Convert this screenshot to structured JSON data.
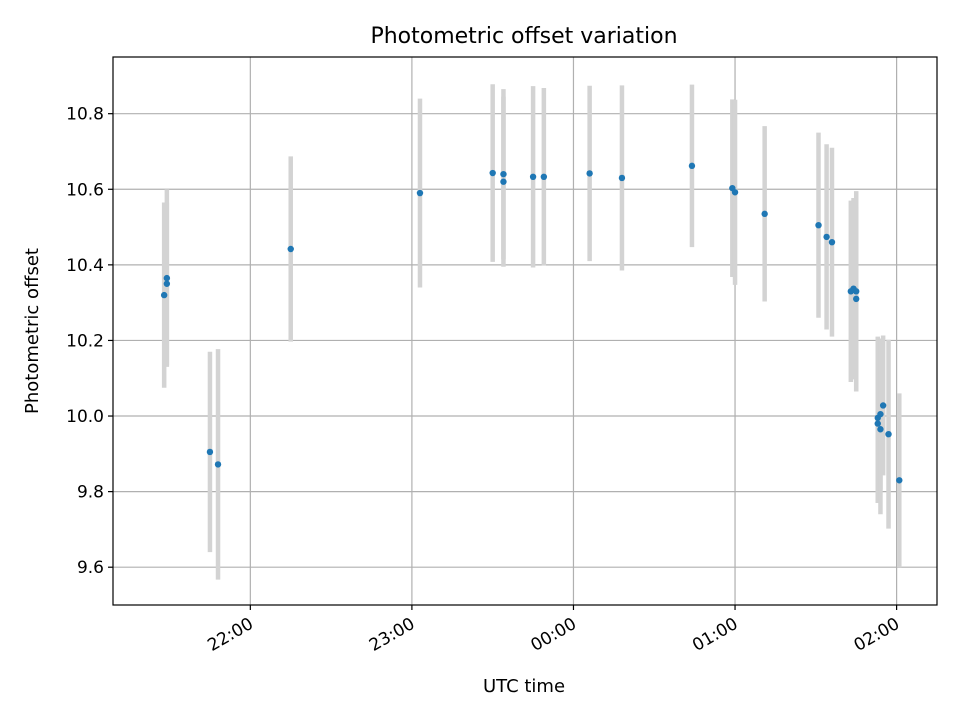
{
  "chart_data": {
    "type": "scatter",
    "title": "Photometric offset variation",
    "xlabel": "UTC time",
    "ylabel": "Photometric offset",
    "x_is_time": true,
    "xlim": [
      "21:09",
      "02:15"
    ],
    "ylim": [
      9.5,
      10.95
    ],
    "x_ticks": [
      "22:00",
      "23:00",
      "00:00",
      "01:00",
      "02:00"
    ],
    "y_ticks": [
      9.6,
      9.8,
      10.0,
      10.2,
      10.4,
      10.6,
      10.8
    ],
    "grid": true,
    "colors": {
      "point": "#1f77b4",
      "errorbar": "#d3d3d3",
      "grid": "#b0b0b0"
    },
    "series": [
      {
        "points": [
          {
            "x": "21:28",
            "y": 10.32,
            "err": 0.245
          },
          {
            "x": "21:29",
            "y": 10.35,
            "err": 0.215
          },
          {
            "x": "21:29",
            "y": 10.365,
            "err": 0.235
          },
          {
            "x": "21:45",
            "y": 9.905,
            "err": 0.265
          },
          {
            "x": "21:48",
            "y": 9.872,
            "err": 0.305
          },
          {
            "x": "22:15",
            "y": 10.442,
            "err": 0.245
          },
          {
            "x": "23:03",
            "y": 10.59,
            "err": 0.25
          },
          {
            "x": "23:30",
            "y": 10.643,
            "err": 0.235
          },
          {
            "x": "23:34",
            "y": 10.62,
            "err": 0.225
          },
          {
            "x": "23:34",
            "y": 10.64,
            "err": 0.225
          },
          {
            "x": "23:45",
            "y": 10.633,
            "err": 0.24
          },
          {
            "x": "23:49",
            "y": 10.633,
            "err": 0.235
          },
          {
            "x": "00:06",
            "y": 10.642,
            "err": 0.232
          },
          {
            "x": "00:18",
            "y": 10.63,
            "err": 0.245
          },
          {
            "x": "00:44",
            "y": 10.662,
            "err": 0.215
          },
          {
            "x": "00:59",
            "y": 10.603,
            "err": 0.235
          },
          {
            "x": "01:00",
            "y": 10.592,
            "err": 0.245
          },
          {
            "x": "01:11",
            "y": 10.535,
            "err": 0.232
          },
          {
            "x": "01:31",
            "y": 10.505,
            "err": 0.245
          },
          {
            "x": "01:34",
            "y": 10.474,
            "err": 0.245
          },
          {
            "x": "01:36",
            "y": 10.46,
            "err": 0.25
          },
          {
            "x": "01:43",
            "y": 10.33,
            "err": 0.24
          },
          {
            "x": "01:44",
            "y": 10.337,
            "err": 0.24
          },
          {
            "x": "01:45",
            "y": 10.31,
            "err": 0.245
          },
          {
            "x": "01:45",
            "y": 10.33,
            "err": 0.265
          },
          {
            "x": "01:53",
            "y": 9.995,
            "err": 0.215
          },
          {
            "x": "01:53",
            "y": 9.98,
            "err": 0.21
          },
          {
            "x": "01:54",
            "y": 9.965,
            "err": 0.225
          },
          {
            "x": "01:54",
            "y": 10.005,
            "err": 0.2
          },
          {
            "x": "01:55",
            "y": 10.028,
            "err": 0.185
          },
          {
            "x": "01:57",
            "y": 9.952,
            "err": 0.25
          },
          {
            "x": "02:01",
            "y": 9.83,
            "err": 0.23
          }
        ]
      }
    ]
  }
}
